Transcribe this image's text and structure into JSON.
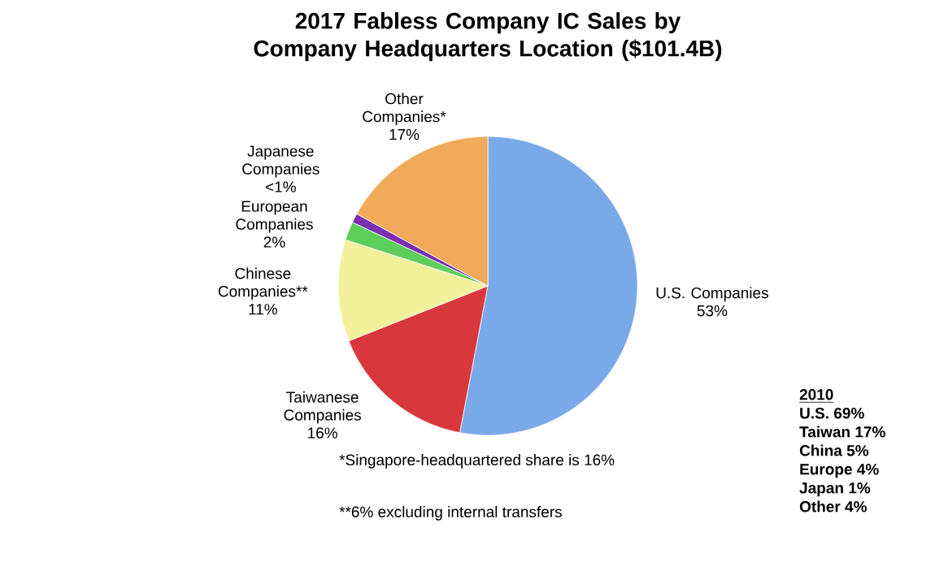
{
  "chart_data": {
    "type": "pie",
    "title": "2017 Fabless Company IC Sales by Company Headquarters Location ($101.4B)",
    "categories": [
      "U.S. Companies",
      "Taiwanese Companies",
      "Chinese Companies**",
      "European Companies",
      "Japanese Companies",
      "Other Companies*"
    ],
    "values": [
      53,
      16,
      11,
      2,
      1,
      17
    ],
    "value_labels": [
      "53%",
      "16%",
      "11%",
      "2%",
      "<1%",
      "17%"
    ],
    "colors": [
      "#7aa9ea",
      "#d8383b",
      "#f4f19c",
      "#5ccf5a",
      "#7a2fb0",
      "#f0aa5a"
    ],
    "annotations": [
      "*Singapore-headquartered share is 16%",
      "**6% excluding internal transfers",
      "2010",
      "U.S.  69%",
      "Taiwan 17%",
      "China  5%",
      "Europe  4%",
      "Japan  1%",
      "Other  4%"
    ]
  }
}
